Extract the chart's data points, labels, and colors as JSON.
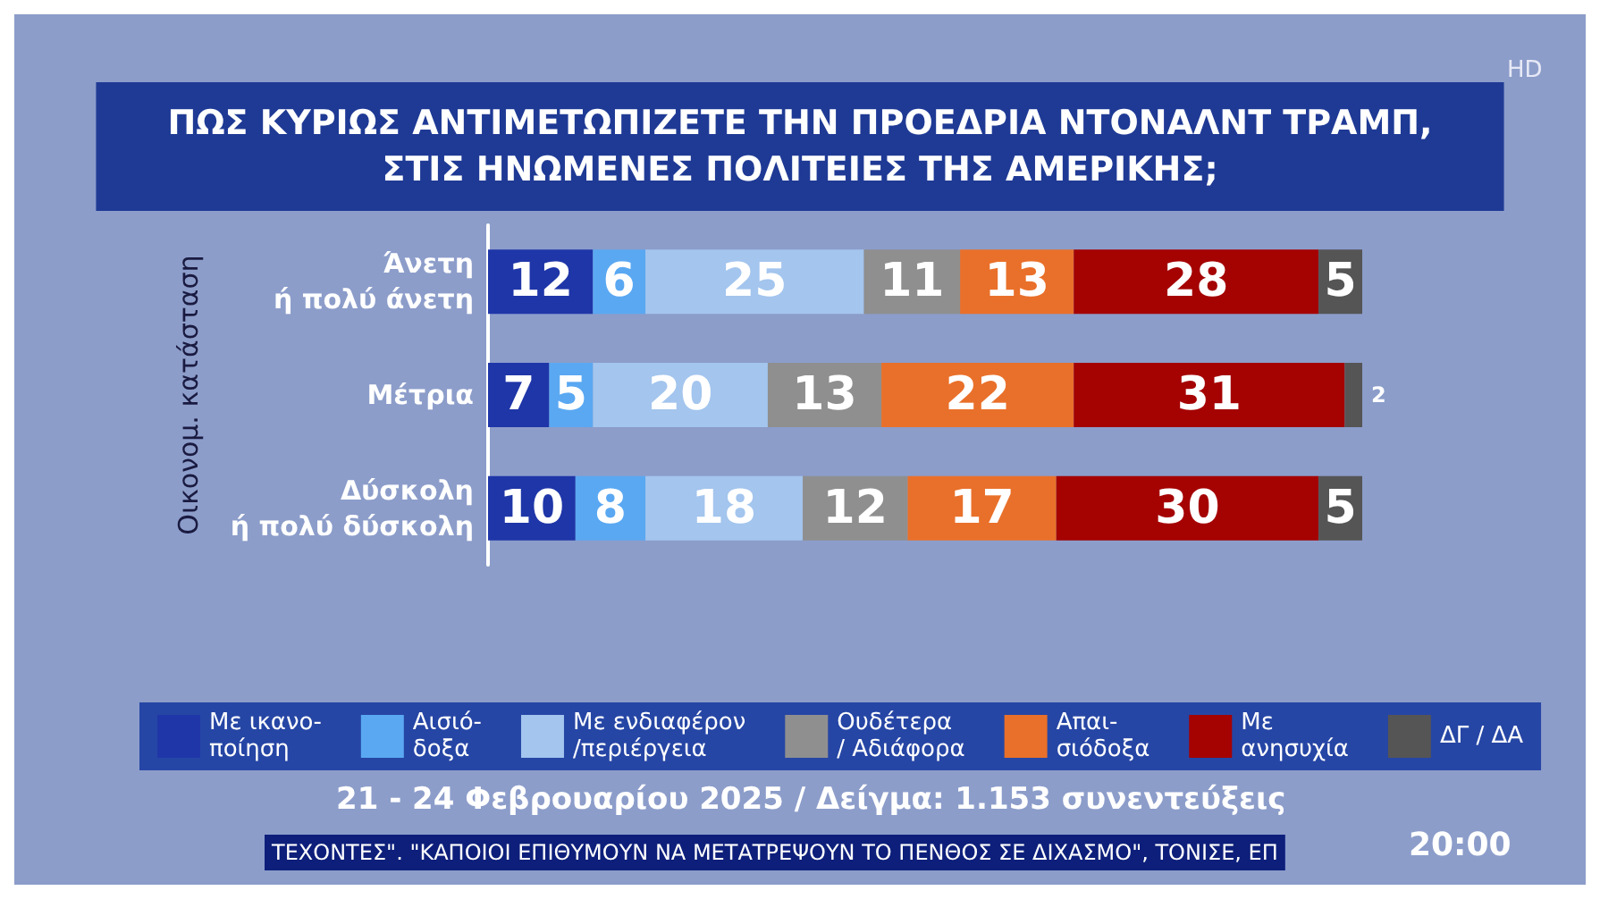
{
  "chart_data": {
    "type": "bar",
    "orientation": "horizontal",
    "stacked": true,
    "data_labels": true,
    "legend": "bottom",
    "title": "ΠΩΣ ΚΥΡΙΩΣ ΑΝΤΙΜΕΤΩΠΙΖΕΤΕ ΤΗΝ ΠΡΟΕΔΡΙΑ ΝΤΟΝΑΛΝΤ ΤΡΑΜΠ,\nΣΤΙΣ ΗΝΩΜΕΝΕΣ ΠΟΛΙΤΕΙΕΣ ΤΗΣ ΑΜΕΡΙΚΗΣ;",
    "ylabel": "Οικονομ. κατάσταση",
    "categories": [
      "Άνετη\nή πολύ άνετη",
      "Μέτρια",
      "Δύσκολη\nή πολύ δύσκολη"
    ],
    "series": [
      {
        "name": "Με ικανο-\nποίηση",
        "color": "#1f36a8",
        "values": [
          12,
          7,
          10
        ]
      },
      {
        "name": "Αισιό-\nδοξα",
        "color": "#5aa8f2",
        "values": [
          6,
          5,
          8
        ]
      },
      {
        "name": "Με ενδιαφέρον\n/περιέργεια",
        "color": "#a3c5ee",
        "values": [
          25,
          20,
          18
        ]
      },
      {
        "name": "Ουδέτερα\n/ Αδιάφορα",
        "color": "#8f8f8f",
        "values": [
          11,
          13,
          12
        ]
      },
      {
        "name": "Απαι-\nσιόδοξα",
        "color": "#e9702a",
        "values": [
          13,
          22,
          17
        ]
      },
      {
        "name": "Με\nανησυχία",
        "color": "#a50202",
        "values": [
          28,
          31,
          30
        ]
      },
      {
        "name": "ΔΓ / ΔΑ",
        "color": "#555555",
        "values": [
          5,
          2,
          5
        ]
      }
    ],
    "annotations": [
      "21 - 24 Φεβρουαρίου 2025 / Δείγμα: 1.153 συνεντεύξεις",
      "ΤΕΧΟΝΤΕΣ\". \"ΚΑΠΟΙΟΙ ΕΠΙΘΥΜΟΥΝ ΝΑ ΜΕΤΑΤΡΕΨΟΥΝ ΤΟ ΠΕΝΘΟΣ ΣΕ ΔΙΧΑΣΜΟ\", ΤΟΝΙΣΕ, ΕΠ",
      "20:00",
      "HD"
    ]
  }
}
